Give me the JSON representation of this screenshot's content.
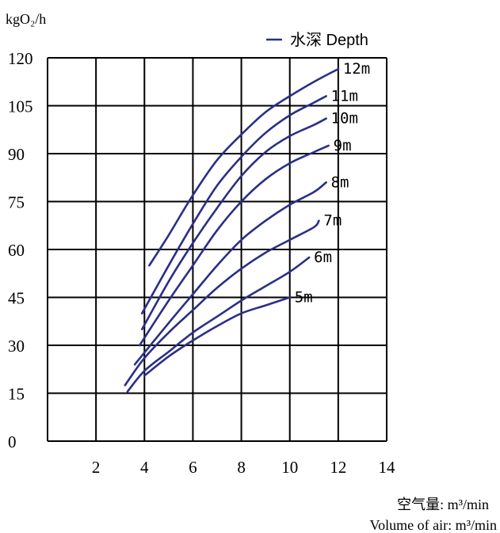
{
  "chart_data": {
    "type": "line",
    "ylabel": "kgO₂/h",
    "xlabel_cn": "空气量: m³/min",
    "xlabel_en": "Volume of air: m³/min",
    "legend_label": "水深 Depth",
    "xlim": [
      2,
      14
    ],
    "ylim": [
      0,
      120
    ],
    "xticks": [
      2,
      4,
      6,
      8,
      10,
      12,
      14
    ],
    "yticks": [
      0,
      15,
      30,
      45,
      60,
      75,
      90,
      105,
      120
    ],
    "x_grid": [
      0,
      2,
      4,
      6,
      8,
      10,
      12,
      14
    ],
    "grid": true,
    "line_color": "#2B2F86",
    "series": [
      {
        "name": "12m",
        "points": [
          [
            4.2,
            55
          ],
          [
            5,
            64.5
          ],
          [
            6,
            77
          ],
          [
            7,
            88
          ],
          [
            8,
            96
          ],
          [
            9,
            103
          ],
          [
            10,
            108
          ],
          [
            11,
            112.5
          ],
          [
            12,
            116.5
          ]
        ]
      },
      {
        "name": "11m",
        "points": [
          [
            3.9,
            40
          ],
          [
            5,
            55
          ],
          [
            6,
            68
          ],
          [
            7,
            80
          ],
          [
            8,
            89
          ],
          [
            9,
            96.5
          ],
          [
            10,
            102
          ],
          [
            11,
            106
          ],
          [
            11.5,
            108
          ]
        ]
      },
      {
        "name": "10m",
        "points": [
          [
            3.9,
            35
          ],
          [
            5,
            50
          ],
          [
            6,
            62
          ],
          [
            7,
            73
          ],
          [
            8,
            83
          ],
          [
            9,
            90.5
          ],
          [
            10,
            95.5
          ],
          [
            11,
            99
          ],
          [
            11.5,
            101
          ]
        ]
      },
      {
        "name": "9m",
        "points": [
          [
            3.8,
            30
          ],
          [
            5,
            44
          ],
          [
            6,
            55
          ],
          [
            7,
            66
          ],
          [
            8,
            75
          ],
          [
            9,
            82
          ],
          [
            10,
            87
          ],
          [
            11,
            90.5
          ],
          [
            11.6,
            92.5
          ]
        ]
      },
      {
        "name": "8m",
        "points": [
          [
            3.6,
            24
          ],
          [
            5,
            37
          ],
          [
            6,
            46
          ],
          [
            7,
            55
          ],
          [
            8,
            63
          ],
          [
            9,
            69
          ],
          [
            10,
            74
          ],
          [
            11,
            78
          ],
          [
            11.5,
            81
          ]
        ]
      },
      {
        "name": "7m",
        "points": [
          [
            3.2,
            17.5
          ],
          [
            4,
            26
          ],
          [
            5,
            34
          ],
          [
            6,
            41
          ],
          [
            7,
            48
          ],
          [
            8,
            54
          ],
          [
            9,
            59
          ],
          [
            10,
            63
          ],
          [
            11,
            67
          ],
          [
            11.2,
            69
          ]
        ]
      },
      {
        "name": "6m",
        "points": [
          [
            3.3,
            15.5
          ],
          [
            4,
            22
          ],
          [
            5,
            28
          ],
          [
            6,
            34
          ],
          [
            7,
            39
          ],
          [
            8,
            44
          ],
          [
            9,
            48.5
          ],
          [
            10,
            53
          ],
          [
            10.8,
            57.5
          ]
        ]
      },
      {
        "name": "5m",
        "points": [
          [
            4,
            20.5
          ],
          [
            5,
            26.5
          ],
          [
            6,
            31.5
          ],
          [
            7,
            36
          ],
          [
            8,
            40
          ],
          [
            9,
            42.5
          ],
          [
            10,
            45
          ]
        ]
      }
    ]
  }
}
